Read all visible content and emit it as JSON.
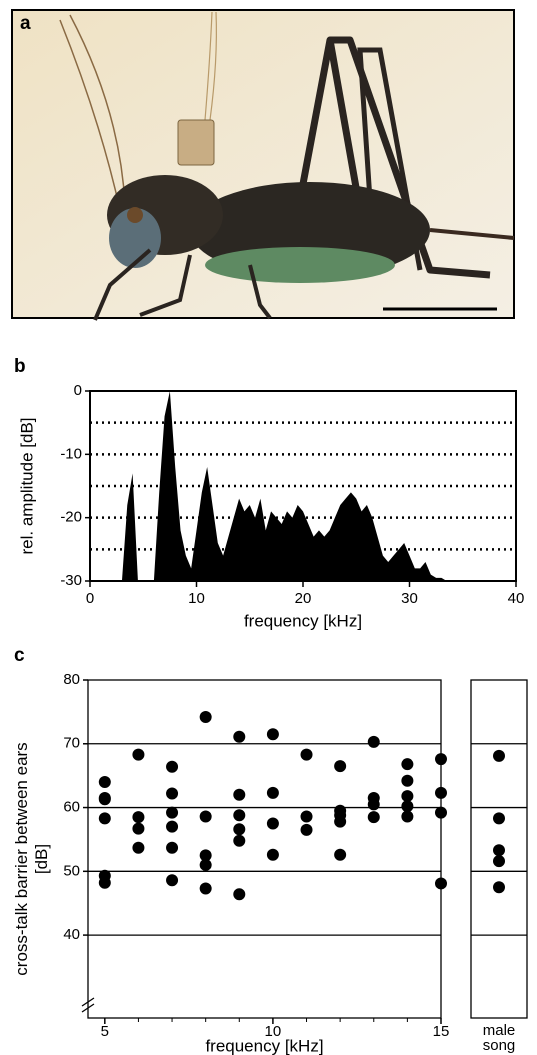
{
  "photo_panel": {
    "label": "a"
  },
  "chart_data": [
    {
      "type": "area",
      "panel": "b",
      "color": "#000000",
      "y_label": "rel. amplitude [dB]",
      "x_label": "frequency [kHz]",
      "xlim": [
        0,
        40
      ],
      "ylim": [
        -30,
        0
      ],
      "xticks": [
        0,
        10,
        20,
        30,
        40
      ],
      "yticks": [
        0,
        -10,
        -20,
        -30
      ],
      "grid_lines": [
        -5,
        -10,
        -15,
        -20,
        -25
      ],
      "x": [
        0,
        0.5,
        1,
        1.5,
        2,
        2.5,
        3,
        3.5,
        4,
        4.5,
        5,
        5.5,
        6,
        6.5,
        7,
        7.5,
        8,
        8.5,
        9,
        9.5,
        10,
        10.5,
        11,
        11.5,
        12,
        12.5,
        13,
        13.5,
        14,
        14.5,
        15,
        15.5,
        16,
        16.5,
        17,
        17.5,
        18,
        18.5,
        19,
        19.5,
        20,
        20.5,
        21,
        21.5,
        22,
        22.5,
        23,
        23.5,
        24,
        24.5,
        25,
        25.5,
        26,
        26.5,
        27,
        27.5,
        28,
        28.5,
        29,
        29.5,
        30,
        30.5,
        31,
        31.5,
        32,
        32.5,
        33,
        33.5,
        34,
        34.5,
        35
      ],
      "values": [
        -30,
        -30,
        -30,
        -30,
        -30,
        -30,
        -30,
        -18,
        -13,
        -30,
        -30,
        -30,
        -30,
        -16,
        -4,
        0,
        -12,
        -22,
        -26,
        -28,
        -22,
        -16,
        -12,
        -18,
        -24,
        -26,
        -23,
        -20,
        -17,
        -19,
        -18,
        -20,
        -17,
        -22,
        -19,
        -20,
        -21,
        -19,
        -20,
        -18,
        -19,
        -21,
        -23,
        -22,
        -23,
        -22,
        -20,
        -18,
        -17,
        -16,
        -17,
        -19,
        -18,
        -20,
        -23,
        -26,
        -27,
        -26,
        -25,
        -24,
        -26,
        -28,
        -28,
        -27,
        -29,
        -29.5,
        -29.5,
        -30,
        -30,
        -30,
        -30
      ]
    },
    {
      "type": "scatter",
      "panel": "c",
      "color": "#000000",
      "y_label": "cross-talk barrier between ears [dB]",
      "x_label": "frequency [kHz]",
      "xlim": [
        4.5,
        15
      ],
      "ylim": [
        27,
        80
      ],
      "xticks": [
        5,
        10,
        15
      ],
      "xminor_ticks": [
        6,
        7,
        8,
        9,
        11,
        12,
        13,
        14
      ],
      "yticks": [
        40,
        50,
        60,
        70,
        80
      ],
      "grid_lines": [
        40,
        50,
        60,
        70
      ],
      "x": [
        5,
        5,
        5,
        5,
        5,
        5,
        6,
        6,
        6,
        6,
        7,
        7,
        7,
        7,
        7,
        7,
        8,
        8,
        8,
        8,
        8,
        9,
        9,
        9,
        9,
        9,
        9,
        10,
        10,
        10,
        10,
        11,
        11,
        11,
        12,
        12,
        12,
        12,
        12,
        13,
        13,
        13,
        13,
        14,
        14,
        14,
        14,
        14,
        15,
        15,
        15,
        15
      ],
      "values": [
        64,
        61.5,
        61.3,
        58.3,
        49.3,
        48.2,
        68.3,
        58.5,
        56.7,
        53.7,
        66.4,
        62.2,
        59.2,
        57,
        53.7,
        48.6,
        74.2,
        58.6,
        52.5,
        51,
        47.3,
        71.1,
        62,
        58.8,
        56.6,
        54.8,
        46.4,
        71.5,
        62.3,
        57.5,
        52.6,
        68.3,
        58.6,
        56.5,
        66.5,
        59.5,
        58.8,
        57.8,
        52.6,
        70.3,
        61.5,
        60.5,
        58.5,
        66.8,
        64.2,
        61.8,
        60.2,
        58.6,
        67.6,
        62.3,
        59.2,
        48.1
      ]
    },
    {
      "type": "strip",
      "color": "#000000",
      "ylim": [
        27,
        80
      ],
      "grid_lines": [
        40,
        50,
        60,
        70
      ],
      "categories": [
        "male song"
      ],
      "values": [
        [
          68.1,
          58.3,
          53.3,
          51.6,
          47.5
        ]
      ]
    }
  ]
}
